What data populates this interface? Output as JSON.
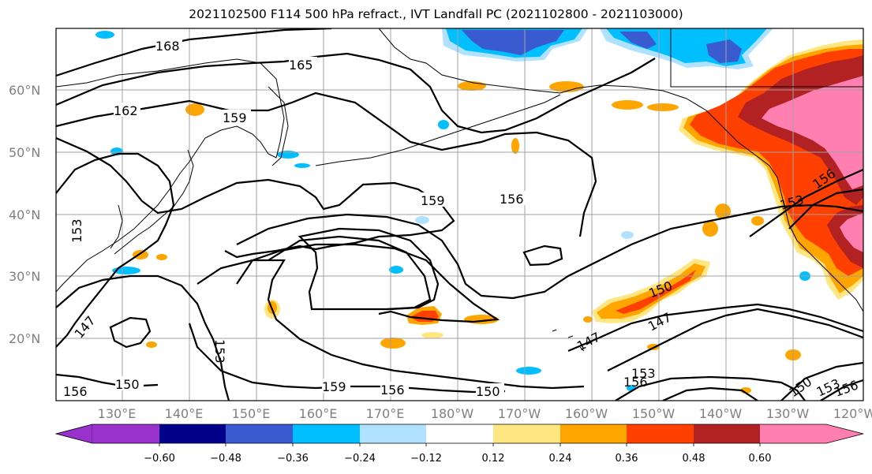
{
  "title": "2021102500 F114 500 hPa refract., IVT Landfall PC (2021102800 - 2021103000)",
  "map": {
    "lat_labels": [
      "60°N",
      "50°N",
      "40°N",
      "30°N",
      "20°N"
    ],
    "lon_labels": [
      "130°E",
      "140°E",
      "150°E",
      "160°E",
      "170°E",
      "180°W",
      "170°W",
      "160°W",
      "150°W",
      "140°W",
      "130°W",
      "120°W"
    ],
    "contour_labels": [
      "168",
      "165",
      "162",
      "159",
      "159",
      "156",
      "153",
      "150",
      "147",
      "147",
      "147",
      "150",
      "153",
      "156",
      "159",
      "156",
      "150",
      "150",
      "153",
      "156",
      "153",
      "156",
      "153",
      "156"
    ],
    "colors": {
      "contour": "#000000",
      "grid": "#a0a0a0",
      "coast": "#000000"
    }
  },
  "colorbar": {
    "tick_labels": [
      "−0.60",
      "−0.48",
      "−0.36",
      "−0.24",
      "−0.12",
      "0.12",
      "0.24",
      "0.36",
      "0.48",
      "0.60"
    ],
    "colors": [
      "#9932cc",
      "#00008b",
      "#3a5ad0",
      "#00bfff",
      "#b0e2ff",
      "#ffffff",
      "#ffe680",
      "#ffa500",
      "#ff4000",
      "#b22222",
      "#ff80b0"
    ]
  }
}
